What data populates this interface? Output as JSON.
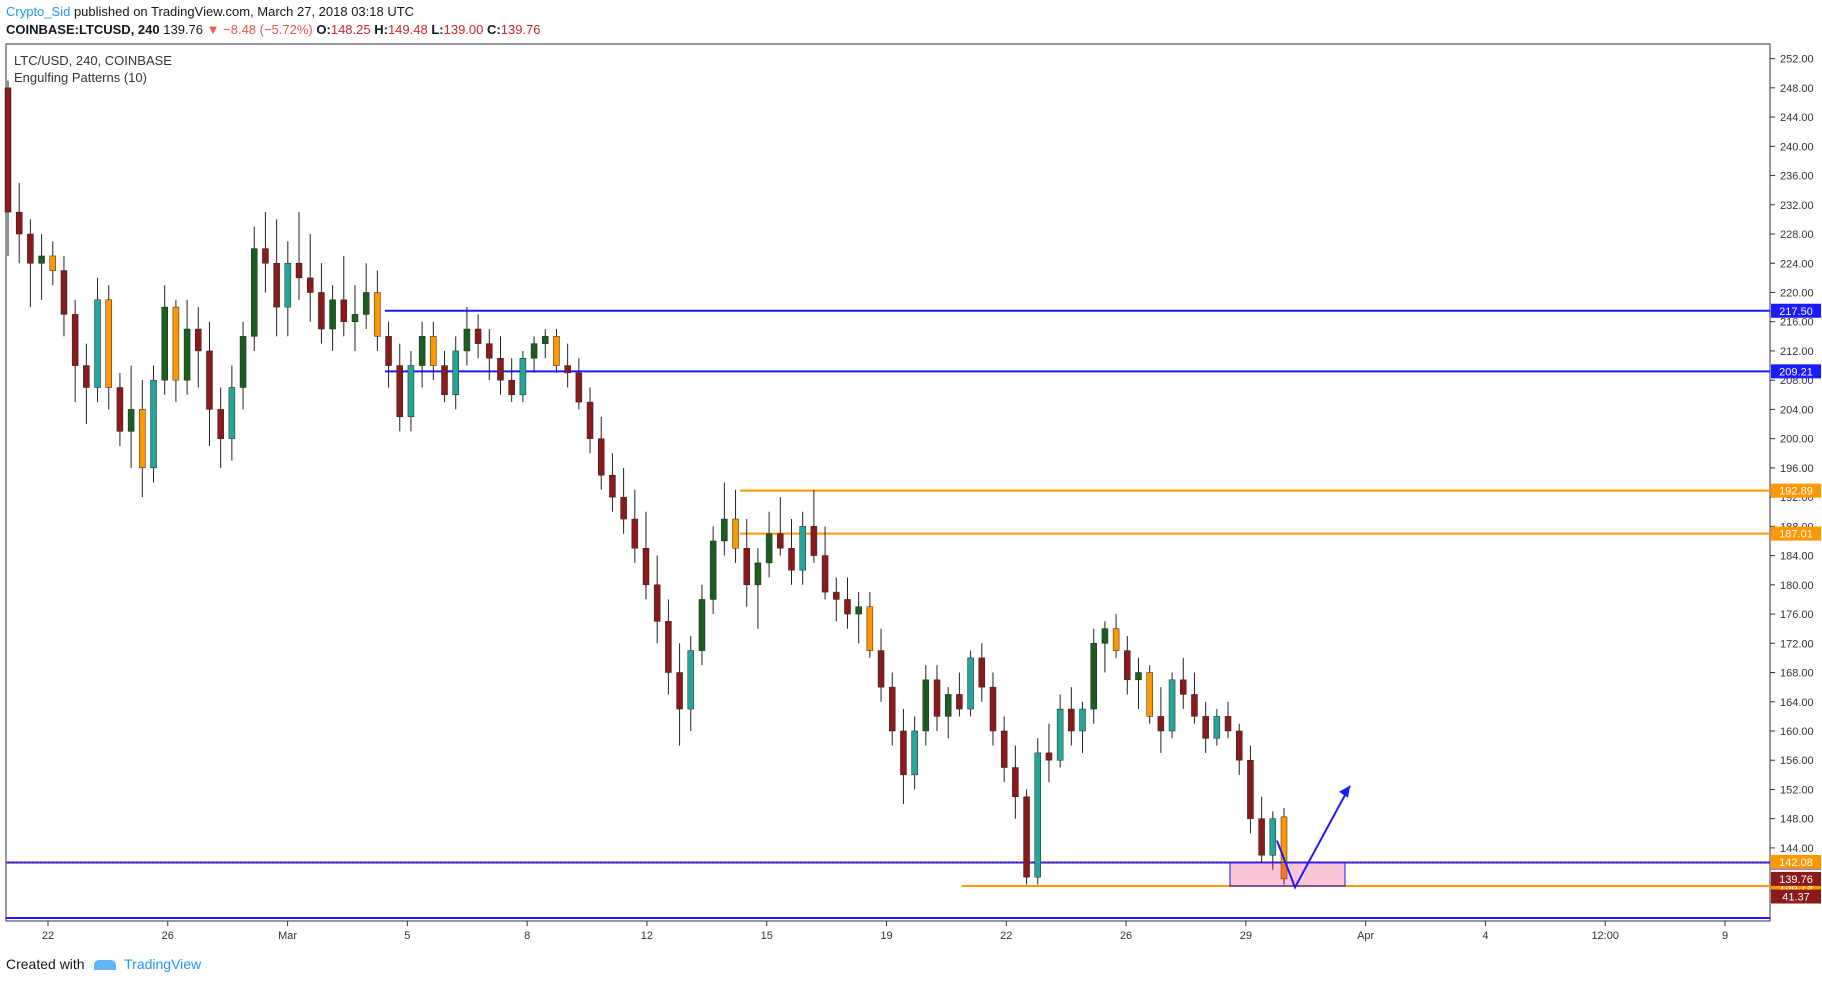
{
  "header": {
    "author": "Crypto_Sid",
    "published_text": "published on TradingView.com, March 27, 2018 03:18 UTC",
    "symbol": "COINBASE:LTCUSD, 240",
    "last": "139.76",
    "change_arrow": "▼",
    "change": "−8.48 (−5.72%)",
    "o_label": "O:",
    "o": "148.25",
    "h_label": "H:",
    "h": "149.48",
    "l_label": "L:",
    "l": "139.00",
    "c_label": "C:",
    "c": "139.76"
  },
  "legend": {
    "title": "LTC/USD, 240, COINBASE",
    "indicator": "Engulfing Patterns (10)"
  },
  "footer": {
    "created_with": "Created with",
    "brand": "TradingView"
  },
  "colors": {
    "up": "#26a69a",
    "up_dark": "#1b5e20",
    "down": "#8b1a1a",
    "engulf": "#ff9800",
    "blue_line": "#1a1aff",
    "orange_line": "#ff9800"
  },
  "chart_data": {
    "type": "candlestick",
    "ylim": [
      134,
      254
    ],
    "y_ticks": [
      "252.00",
      "248.00",
      "244.00",
      "240.00",
      "236.00",
      "232.00",
      "228.00",
      "224.00",
      "220.00",
      "216.00",
      "212.00",
      "208.00",
      "204.00",
      "200.00",
      "196.00",
      "192.00",
      "188.00",
      "184.00",
      "180.00",
      "176.00",
      "172.00",
      "168.00",
      "164.00",
      "160.00",
      "156.00",
      "152.00",
      "148.00",
      "144.00"
    ],
    "x_ticks": [
      "22",
      "26",
      "Mar",
      "5",
      "8",
      "12",
      "15",
      "19",
      "22",
      "26",
      "29",
      "Apr",
      "4",
      "12:00",
      "9"
    ],
    "price_levels": [
      {
        "value": 217.5,
        "label": "217.50",
        "color": "blue"
      },
      {
        "value": 209.21,
        "label": "209.21",
        "color": "blue"
      },
      {
        "value": 192.89,
        "label": "192.89",
        "color": "orange"
      },
      {
        "value": 187.01,
        "label": "187.01",
        "color": "orange"
      },
      {
        "value": 142.0,
        "label": "142.00",
        "color": "blue"
      },
      {
        "value": 138.79,
        "label": "138.79",
        "color": "orange"
      }
    ],
    "price_tags": [
      {
        "value": 142.08,
        "label": "142.08"
      },
      {
        "value": 139.76,
        "label": "139.76"
      },
      {
        "value": 137.35,
        "label": "41.37"
      }
    ],
    "candles": [
      [
        248,
        249,
        225,
        231
      ],
      [
        231,
        235,
        224,
        228
      ],
      [
        228,
        230,
        218,
        224
      ],
      [
        224,
        228,
        219,
        225
      ],
      [
        225,
        227,
        221,
        223
      ],
      [
        223,
        225,
        214,
        217
      ],
      [
        217,
        219,
        205,
        210
      ],
      [
        210,
        213,
        202,
        207
      ],
      [
        207,
        222,
        205,
        219
      ],
      [
        219,
        221,
        204,
        207
      ],
      [
        207,
        209,
        199,
        201
      ],
      [
        201,
        210,
        196,
        204
      ],
      [
        204,
        208,
        192,
        196
      ],
      [
        196,
        210,
        194,
        208
      ],
      [
        208,
        221,
        206,
        218
      ],
      [
        218,
        219,
        205,
        208
      ],
      [
        208,
        219,
        206,
        215
      ],
      [
        215,
        218,
        207,
        212
      ],
      [
        212,
        216,
        199,
        204
      ],
      [
        204,
        207,
        196,
        200
      ],
      [
        200,
        210,
        197,
        207
      ],
      [
        207,
        216,
        204,
        214
      ],
      [
        214,
        229,
        212,
        226
      ],
      [
        226,
        231,
        220,
        224
      ],
      [
        224,
        230,
        214,
        218
      ],
      [
        218,
        227,
        214,
        224
      ],
      [
        224,
        231,
        219,
        222
      ],
      [
        222,
        228,
        216,
        220
      ],
      [
        220,
        224,
        213,
        215
      ],
      [
        215,
        221,
        212,
        219
      ],
      [
        219,
        225,
        214,
        216
      ],
      [
        216,
        221,
        212,
        217
      ],
      [
        217,
        224,
        215,
        220
      ],
      [
        220,
        223,
        212,
        214
      ],
      [
        214,
        216,
        207,
        210
      ],
      [
        210,
        213,
        201,
        203
      ],
      [
        203,
        212,
        201,
        210
      ],
      [
        210,
        216,
        207,
        214
      ],
      [
        214,
        216,
        208,
        210
      ],
      [
        210,
        212,
        205,
        206
      ],
      [
        206,
        214,
        204,
        212
      ],
      [
        212,
        218,
        210,
        215
      ],
      [
        215,
        217,
        211,
        213
      ],
      [
        213,
        215,
        208,
        211
      ],
      [
        211,
        214,
        206,
        208
      ],
      [
        208,
        211,
        205,
        206
      ],
      [
        206,
        212,
        205,
        211
      ],
      [
        211,
        214,
        209,
        213
      ],
      [
        213,
        215,
        211,
        214
      ],
      [
        214,
        215,
        209,
        210
      ],
      [
        210,
        213,
        207,
        209
      ],
      [
        209,
        211,
        204,
        205
      ],
      [
        205,
        207,
        198,
        200
      ],
      [
        200,
        203,
        193,
        195
      ],
      [
        195,
        198,
        190,
        192
      ],
      [
        192,
        196,
        187,
        189
      ],
      [
        189,
        193,
        183,
        185
      ],
      [
        185,
        190,
        178,
        180
      ],
      [
        180,
        184,
        172,
        175
      ],
      [
        175,
        178,
        165,
        168
      ],
      [
        168,
        172,
        158,
        163
      ],
      [
        163,
        173,
        160,
        171
      ],
      [
        171,
        180,
        169,
        178
      ],
      [
        178,
        188,
        176,
        186
      ],
      [
        186,
        194,
        184,
        189
      ],
      [
        189,
        193,
        183,
        185
      ],
      [
        185,
        189,
        177,
        180
      ],
      [
        180,
        185,
        174,
        183
      ],
      [
        183,
        190,
        181,
        187
      ],
      [
        187,
        192,
        184,
        185
      ],
      [
        185,
        189,
        180,
        182
      ],
      [
        182,
        190,
        180,
        188
      ],
      [
        188,
        193,
        183,
        184
      ],
      [
        184,
        188,
        178,
        179
      ],
      [
        179,
        181,
        175,
        178
      ],
      [
        178,
        181,
        174,
        176
      ],
      [
        176,
        179,
        172,
        177
      ],
      [
        177,
        179,
        170,
        171
      ],
      [
        171,
        174,
        164,
        166
      ],
      [
        166,
        168,
        158,
        160
      ],
      [
        160,
        163,
        150,
        154
      ],
      [
        154,
        162,
        152,
        160
      ],
      [
        160,
        169,
        158,
        167
      ],
      [
        167,
        169,
        160,
        162
      ],
      [
        162,
        166,
        159,
        165
      ],
      [
        165,
        168,
        162,
        163
      ],
      [
        163,
        171,
        162,
        170
      ],
      [
        170,
        172,
        164,
        166
      ],
      [
        166,
        168,
        158,
        160
      ],
      [
        160,
        162,
        153,
        155
      ],
      [
        155,
        158,
        148,
        151
      ],
      [
        151,
        152,
        139,
        140
      ],
      [
        140,
        159,
        139,
        157
      ],
      [
        157,
        161,
        153,
        156
      ],
      [
        156,
        165,
        155,
        163
      ],
      [
        163,
        166,
        158,
        160
      ],
      [
        160,
        164,
        157,
        163
      ],
      [
        163,
        174,
        161,
        172
      ],
      [
        172,
        175,
        168,
        174
      ],
      [
        174,
        176,
        170,
        171
      ],
      [
        171,
        173,
        165,
        167
      ],
      [
        167,
        170,
        163,
        168
      ],
      [
        168,
        169,
        161,
        162
      ],
      [
        162,
        166,
        157,
        160
      ],
      [
        160,
        168,
        159,
        167
      ],
      [
        167,
        170,
        163,
        165
      ],
      [
        165,
        168,
        161,
        162
      ],
      [
        162,
        164,
        157,
        159
      ],
      [
        159,
        163,
        158,
        162
      ],
      [
        162,
        164,
        159,
        160
      ],
      [
        160,
        161,
        154,
        156
      ],
      [
        156,
        158,
        146,
        148
      ],
      [
        148,
        151,
        142,
        143
      ],
      [
        143,
        149,
        141,
        148
      ],
      [
        148.25,
        149.48,
        139,
        139.76
      ]
    ]
  }
}
